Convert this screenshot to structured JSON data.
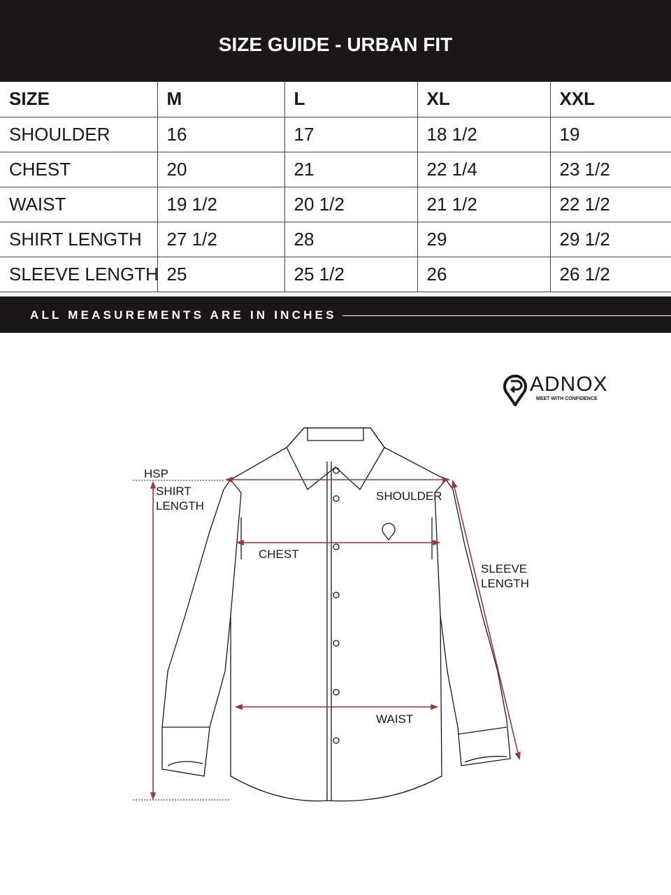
{
  "title": "SIZE GUIDE - URBAN FIT",
  "table": {
    "headers": [
      "SIZE",
      "M",
      "L",
      "XL",
      "XXL"
    ],
    "rows": [
      [
        "SHOULDER",
        "16",
        "17",
        "18 1/2",
        "19"
      ],
      [
        "CHEST",
        "20",
        "21",
        "22 1/4",
        "23 1/2"
      ],
      [
        "WAIST",
        "19 1/2",
        "20 1/2",
        "21 1/2",
        "22 1/2"
      ],
      [
        "SHIRT LENGTH",
        "27 1/2",
        "28",
        "29",
        "29 1/2"
      ],
      [
        "SLEEVE LENGTH",
        "25",
        "25 1/2",
        "26",
        "26 1/2"
      ]
    ]
  },
  "footer": "ALL MEASUREMENTS ARE IN INCHES",
  "logo": {
    "name": "ADNOX",
    "tagline": "MEET WITH CONFIDENCE"
  },
  "diagram": {
    "labels": {
      "hsp": "HSP",
      "shirt_length_1": "SHIRT",
      "shirt_length_2": "LENGTH",
      "shoulder": "SHOULDER",
      "chest": "CHEST",
      "sleeve_1": "SLEEVE",
      "sleeve_2": "LENGTH",
      "waist": "WAIST"
    },
    "measure_color": "#a0343a"
  }
}
